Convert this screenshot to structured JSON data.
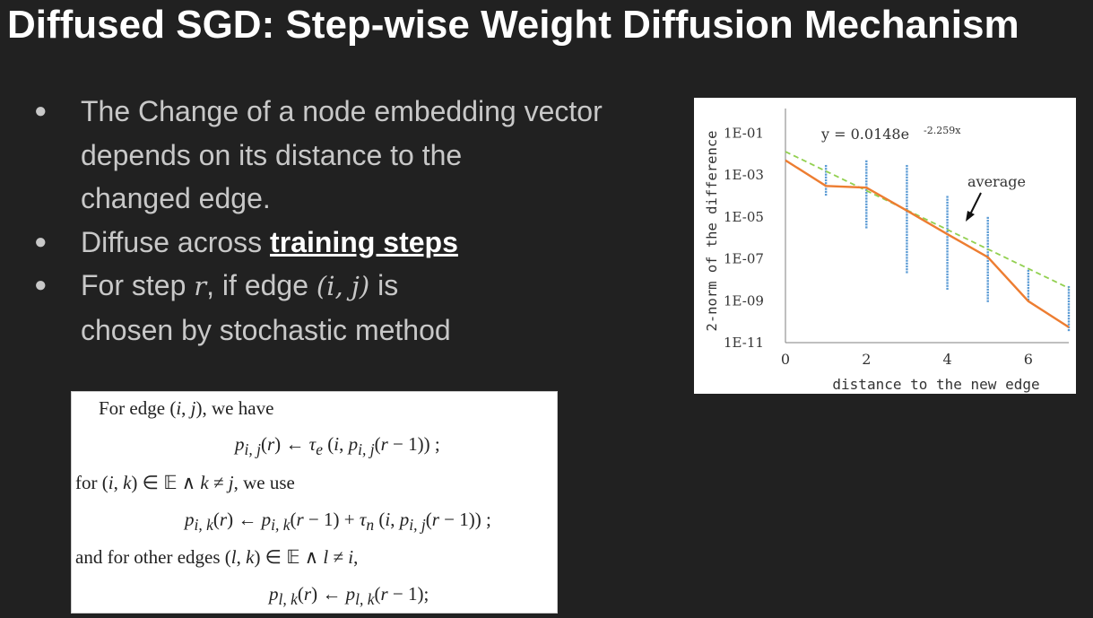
{
  "slide": {
    "title": "Diffused SGD: Step-wise Weight Diffusion Mechanism"
  },
  "bullets": {
    "b1_line1": "The Change of a node embedding vector",
    "b1_line2": "depends on its distance to the",
    "b1_line3": "changed edge.",
    "b2_prefix": "Diffuse across ",
    "b2_emph": "training steps",
    "b3_part1": "For step ",
    "b3_var": "r",
    "b3_part2": ", if edge ",
    "b3_pair": "(i, j)",
    "b3_part3": " is",
    "b3_line2": "chosen by stochastic method",
    "marker": "●"
  },
  "formula": {
    "l1": "For edge (i, j), we have",
    "l2": "p_{i,j}(r) ← τ_e (i, p_{i,j}(r − 1)) ;",
    "l3": "for (i, k) ∈ 𝔼 ∧ k ≠ j, we use",
    "l4": "p_{i,k}(r) ← p_{i,k}(r − 1) + τ_n (i, p_{i,j}(r − 1)) ;",
    "l5": "and for other edges (l, k) ∈ 𝔼 ∧ l ≠ i,",
    "l6": "p_{l,k}(r) ← p_{l,k}(r − 1);"
  },
  "chart_data": {
    "type": "scatter",
    "xlabel": "distance to the new edge",
    "ylabel": "2-norm of the difference",
    "x_ticks": [
      "0",
      "2",
      "4",
      "6"
    ],
    "y_ticks": [
      "1E-01",
      "1E-03",
      "1E-05",
      "1E-07",
      "1E-09",
      "1E-11"
    ],
    "xlim": [
      0,
      7
    ],
    "ylim_log10": [
      -11,
      0
    ],
    "y_scale": "log",
    "fit_equation": "y = 0.0148e",
    "fit_exponent": "-2.259x",
    "fit_coefficient": 0.0148,
    "fit_rate": -2.259,
    "annotation": "average",
    "average_line": {
      "x": [
        0,
        1,
        2,
        3,
        4,
        5,
        6,
        7
      ],
      "y": [
        0.005,
        0.0003,
        0.00025,
        2e-05,
        1.5e-06,
        1.2e-07,
        9.5e-10,
        5.5e-11
      ]
    },
    "scatter_groups": [
      {
        "x": 1,
        "y_min": 0.0001,
        "y_max": 0.003
      },
      {
        "x": 2,
        "y_min": 3e-06,
        "y_max": 0.005
      },
      {
        "x": 3,
        "y_min": 2e-08,
        "y_max": 0.003
      },
      {
        "x": 4,
        "y_min": 4e-09,
        "y_max": 0.0001
      },
      {
        "x": 5,
        "y_min": 1e-09,
        "y_max": 1e-05
      },
      {
        "x": 6,
        "y_min": 1e-09,
        "y_max": 3e-08
      },
      {
        "x": 7,
        "y_min": 4e-11,
        "y_max": 5e-09
      }
    ],
    "colors": {
      "average": "#ed7d31",
      "fit": "#92d050",
      "points": "#5b9bd5",
      "axis": "#7f7f7f",
      "text": "#333333"
    },
    "grid": false
  }
}
